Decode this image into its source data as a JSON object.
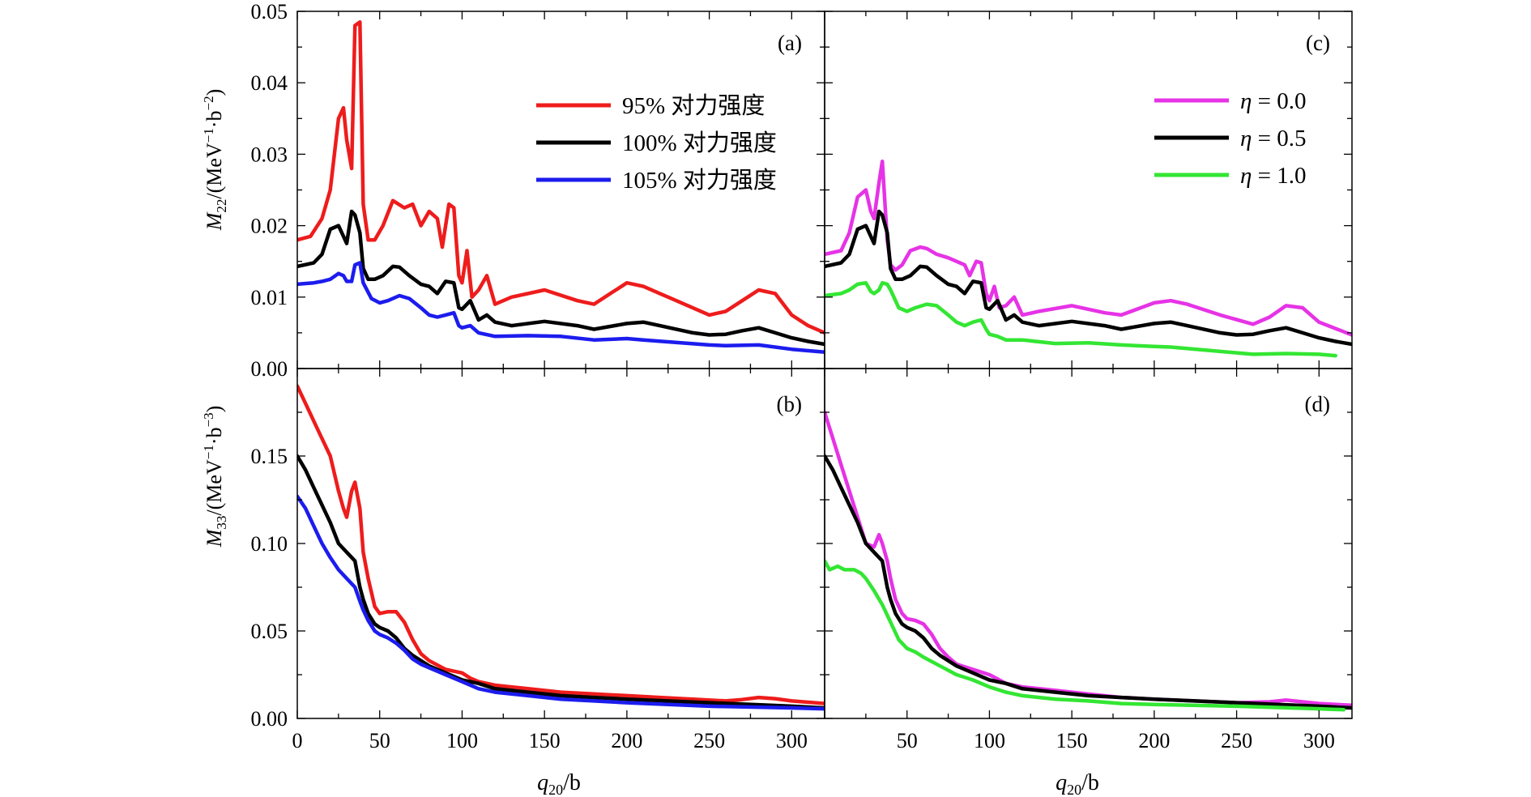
{
  "axis_labels": {
    "ylabel_top_main": "M",
    "ylabel_top_sub": "22",
    "ylabel_top_unit": "/(MeV",
    "ylabel_top_sup1": "−1",
    "ylabel_top_mid": "·b",
    "ylabel_top_sup2": "−2",
    "ylabel_top_close": ")",
    "ylabel_bottom_main": "M",
    "ylabel_bottom_sub": "33",
    "ylabel_bottom_unit": "/(MeV",
    "ylabel_bottom_sup1": "−1",
    "ylabel_bottom_mid": "·b",
    "ylabel_bottom_sup2": "−3",
    "ylabel_bottom_close": ")",
    "xlabel_main": "q",
    "xlabel_sub": "20",
    "xlabel_unit": "/b"
  },
  "colors": {
    "red": "#ee1c1c",
    "black": "#000000",
    "blue": "#1c1cee",
    "magenta": "#e633e6",
    "green": "#33e633"
  },
  "chart_data": [
    {
      "panel": "(a)",
      "type": "line",
      "xlim": [
        0,
        320
      ],
      "ylim": [
        0,
        0.05
      ],
      "xticks": [
        0,
        50,
        100,
        150,
        200,
        250,
        300
      ],
      "yticks": [
        "0.00",
        "0.01",
        "0.02",
        "0.03",
        "0.04",
        "0.05"
      ],
      "legend_position": "top-right",
      "series": [
        {
          "name": "95% 对力强度",
          "color": "red",
          "x": [
            0,
            8,
            15,
            20,
            25,
            28,
            30,
            33,
            35,
            38,
            40,
            43,
            47,
            52,
            58,
            65,
            70,
            75,
            80,
            85,
            88,
            92,
            95,
            98,
            100,
            103,
            106,
            110,
            115,
            120,
            130,
            150,
            170,
            180,
            190,
            200,
            210,
            220,
            230,
            250,
            260,
            270,
            280,
            290,
            300,
            310,
            320
          ],
          "y": [
            0.018,
            0.0185,
            0.021,
            0.025,
            0.035,
            0.0365,
            0.032,
            0.028,
            0.048,
            0.0485,
            0.023,
            0.018,
            0.018,
            0.02,
            0.0235,
            0.0225,
            0.023,
            0.02,
            0.022,
            0.021,
            0.017,
            0.023,
            0.0225,
            0.013,
            0.012,
            0.0165,
            0.01,
            0.011,
            0.013,
            0.009,
            0.01,
            0.011,
            0.0095,
            0.009,
            0.0105,
            0.012,
            0.0115,
            0.0105,
            0.0095,
            0.0075,
            0.008,
            0.0095,
            0.011,
            0.0105,
            0.0075,
            0.006,
            0.005
          ]
        },
        {
          "name": "100% 对力强度",
          "color": "black",
          "x": [
            0,
            10,
            15,
            20,
            25,
            28,
            30,
            33,
            35,
            38,
            40,
            43,
            47,
            52,
            58,
            62,
            68,
            75,
            80,
            85,
            90,
            95,
            98,
            100,
            105,
            110,
            115,
            120,
            130,
            150,
            170,
            180,
            200,
            210,
            220,
            240,
            250,
            260,
            270,
            280,
            290,
            300,
            310,
            320
          ],
          "y": [
            0.0143,
            0.0148,
            0.016,
            0.0195,
            0.02,
            0.0185,
            0.0175,
            0.022,
            0.0215,
            0.019,
            0.014,
            0.0125,
            0.0125,
            0.013,
            0.0143,
            0.0142,
            0.013,
            0.0118,
            0.0115,
            0.0105,
            0.0122,
            0.012,
            0.0085,
            0.0083,
            0.0095,
            0.0068,
            0.0075,
            0.0065,
            0.006,
            0.0066,
            0.006,
            0.0055,
            0.0063,
            0.0065,
            0.006,
            0.005,
            0.0047,
            0.0048,
            0.0053,
            0.0057,
            0.005,
            0.0043,
            0.0038,
            0.0034
          ]
        },
        {
          "name": "105% 对力强度",
          "color": "blue",
          "x": [
            0,
            10,
            15,
            20,
            25,
            28,
            30,
            33,
            35,
            38,
            40,
            45,
            50,
            55,
            62,
            68,
            75,
            80,
            85,
            90,
            95,
            98,
            100,
            105,
            110,
            120,
            140,
            160,
            180,
            200,
            210,
            250,
            260,
            280,
            300,
            320
          ],
          "y": [
            0.0118,
            0.012,
            0.0122,
            0.0125,
            0.0133,
            0.013,
            0.0122,
            0.0122,
            0.0145,
            0.0148,
            0.012,
            0.0098,
            0.0092,
            0.0095,
            0.0102,
            0.0098,
            0.0085,
            0.0075,
            0.0072,
            0.0075,
            0.0078,
            0.006,
            0.0057,
            0.006,
            0.005,
            0.0045,
            0.0046,
            0.0045,
            0.004,
            0.0042,
            0.004,
            0.0033,
            0.0032,
            0.0033,
            0.0027,
            0.0023
          ]
        }
      ]
    },
    {
      "panel": "(b)",
      "type": "line",
      "xlim": [
        0,
        320
      ],
      "ylim": [
        0,
        0.2
      ],
      "xticks": [
        0,
        50,
        100,
        150,
        200,
        250,
        300
      ],
      "yticks": [
        "0.00",
        "0.05",
        "0.10",
        "0.15"
      ],
      "series": [
        {
          "name": "95% 对力强度",
          "color": "red",
          "x": [
            0,
            5,
            10,
            15,
            20,
            25,
            28,
            30,
            33,
            35,
            38,
            40,
            43,
            47,
            50,
            55,
            60,
            65,
            70,
            75,
            80,
            90,
            95,
            100,
            105,
            110,
            120,
            140,
            160,
            180,
            200,
            220,
            240,
            260,
            270,
            280,
            290,
            300,
            320
          ],
          "y": [
            0.19,
            0.18,
            0.17,
            0.16,
            0.15,
            0.13,
            0.12,
            0.115,
            0.13,
            0.135,
            0.12,
            0.095,
            0.08,
            0.064,
            0.06,
            0.061,
            0.061,
            0.055,
            0.045,
            0.037,
            0.033,
            0.028,
            0.027,
            0.026,
            0.023,
            0.021,
            0.019,
            0.017,
            0.015,
            0.014,
            0.013,
            0.012,
            0.011,
            0.01,
            0.0108,
            0.012,
            0.0113,
            0.01,
            0.0085
          ]
        },
        {
          "name": "100% 对力强度",
          "color": "black",
          "x": [
            0,
            5,
            10,
            15,
            20,
            25,
            30,
            35,
            38,
            40,
            43,
            47,
            50,
            55,
            60,
            65,
            70,
            75,
            80,
            90,
            100,
            110,
            120,
            140,
            160,
            180,
            200,
            250,
            300,
            320
          ],
          "y": [
            0.15,
            0.142,
            0.132,
            0.122,
            0.112,
            0.1,
            0.095,
            0.09,
            0.075,
            0.068,
            0.06,
            0.054,
            0.052,
            0.05,
            0.046,
            0.04,
            0.036,
            0.033,
            0.03,
            0.026,
            0.022,
            0.02,
            0.017,
            0.015,
            0.013,
            0.012,
            0.011,
            0.009,
            0.007,
            0.006
          ]
        },
        {
          "name": "105% 对力强度",
          "color": "blue",
          "x": [
            0,
            5,
            10,
            15,
            20,
            25,
            30,
            35,
            38,
            40,
            43,
            47,
            50,
            55,
            60,
            65,
            70,
            75,
            80,
            90,
            100,
            110,
            120,
            140,
            160,
            180,
            200,
            250,
            300,
            320
          ],
          "y": [
            0.127,
            0.12,
            0.11,
            0.1,
            0.092,
            0.085,
            0.08,
            0.075,
            0.067,
            0.062,
            0.056,
            0.05,
            0.048,
            0.046,
            0.043,
            0.039,
            0.034,
            0.031,
            0.029,
            0.025,
            0.021,
            0.017,
            0.015,
            0.013,
            0.011,
            0.01,
            0.009,
            0.007,
            0.006,
            0.0055
          ]
        }
      ]
    },
    {
      "panel": "(c)",
      "type": "line",
      "xlim": [
        0,
        320
      ],
      "ylim": [
        0,
        0.05
      ],
      "xticks": [
        50,
        100,
        150,
        200,
        250,
        300
      ],
      "legend_position": "top-right",
      "series": [
        {
          "name": "η = 0.0",
          "color": "magenta",
          "x": [
            0,
            10,
            15,
            20,
            25,
            28,
            30,
            33,
            35,
            38,
            40,
            43,
            47,
            52,
            58,
            62,
            68,
            75,
            80,
            85,
            88,
            92,
            95,
            98,
            100,
            103,
            106,
            110,
            115,
            120,
            130,
            150,
            170,
            180,
            200,
            210,
            220,
            240,
            260,
            270,
            280,
            290,
            300,
            320
          ],
          "y": [
            0.016,
            0.0165,
            0.019,
            0.024,
            0.025,
            0.022,
            0.021,
            0.026,
            0.029,
            0.018,
            0.0145,
            0.0138,
            0.0145,
            0.0165,
            0.017,
            0.0168,
            0.016,
            0.0155,
            0.015,
            0.0145,
            0.013,
            0.015,
            0.0148,
            0.0105,
            0.0095,
            0.0115,
            0.0085,
            0.0088,
            0.01,
            0.0075,
            0.008,
            0.0088,
            0.0078,
            0.0075,
            0.0092,
            0.0095,
            0.009,
            0.0075,
            0.0062,
            0.0072,
            0.0088,
            0.0085,
            0.0065,
            0.0047
          ]
        },
        {
          "name": "η = 0.5",
          "color": "black",
          "x": [
            0,
            10,
            15,
            20,
            25,
            28,
            30,
            33,
            35,
            38,
            40,
            43,
            47,
            52,
            58,
            62,
            68,
            75,
            80,
            85,
            90,
            95,
            98,
            100,
            105,
            110,
            115,
            120,
            130,
            150,
            170,
            180,
            200,
            210,
            220,
            240,
            250,
            260,
            270,
            280,
            290,
            300,
            310,
            320
          ],
          "y": [
            0.0143,
            0.0148,
            0.016,
            0.0195,
            0.02,
            0.0185,
            0.0175,
            0.022,
            0.0215,
            0.019,
            0.014,
            0.0125,
            0.0125,
            0.013,
            0.0143,
            0.0142,
            0.013,
            0.0118,
            0.0115,
            0.0105,
            0.0122,
            0.012,
            0.0085,
            0.0083,
            0.0095,
            0.0068,
            0.0075,
            0.0065,
            0.006,
            0.0066,
            0.006,
            0.0055,
            0.0063,
            0.0065,
            0.006,
            0.005,
            0.0047,
            0.0048,
            0.0053,
            0.0057,
            0.005,
            0.0043,
            0.0038,
            0.0034
          ]
        },
        {
          "name": "η = 1.0",
          "color": "green",
          "x": [
            0,
            10,
            15,
            20,
            25,
            28,
            30,
            33,
            35,
            38,
            40,
            45,
            50,
            55,
            62,
            68,
            75,
            80,
            85,
            90,
            95,
            98,
            100,
            105,
            110,
            120,
            140,
            160,
            180,
            200,
            210,
            250,
            260,
            280,
            300,
            310
          ],
          "y": [
            0.0102,
            0.0105,
            0.011,
            0.0118,
            0.012,
            0.0108,
            0.0105,
            0.011,
            0.012,
            0.0118,
            0.011,
            0.0085,
            0.008,
            0.0085,
            0.009,
            0.0088,
            0.0075,
            0.0065,
            0.006,
            0.0065,
            0.0068,
            0.0055,
            0.0048,
            0.0045,
            0.004,
            0.004,
            0.0035,
            0.0036,
            0.0033,
            0.0031,
            0.003,
            0.0022,
            0.002,
            0.0021,
            0.002,
            0.0018
          ]
        }
      ]
    },
    {
      "panel": "(d)",
      "type": "line",
      "xlim": [
        0,
        320
      ],
      "ylim": [
        0,
        0.2
      ],
      "xticks": [
        50,
        100,
        150,
        200,
        250,
        300
      ],
      "series": [
        {
          "name": "η = 0.0",
          "color": "magenta",
          "x": [
            0,
            5,
            10,
            15,
            20,
            25,
            30,
            33,
            35,
            38,
            40,
            43,
            47,
            50,
            55,
            60,
            65,
            70,
            75,
            80,
            90,
            100,
            110,
            120,
            140,
            160,
            180,
            200,
            250,
            270,
            280,
            290,
            300,
            320
          ],
          "y": [
            0.175,
            0.16,
            0.145,
            0.13,
            0.115,
            0.1,
            0.098,
            0.105,
            0.1,
            0.09,
            0.08,
            0.068,
            0.06,
            0.057,
            0.056,
            0.054,
            0.048,
            0.04,
            0.035,
            0.031,
            0.028,
            0.025,
            0.02,
            0.018,
            0.016,
            0.014,
            0.012,
            0.011,
            0.009,
            0.0095,
            0.0105,
            0.0095,
            0.0085,
            0.0075
          ]
        },
        {
          "name": "η = 0.5",
          "color": "black",
          "x": [
            0,
            5,
            10,
            15,
            20,
            25,
            30,
            35,
            38,
            40,
            43,
            47,
            50,
            55,
            60,
            65,
            70,
            75,
            80,
            90,
            100,
            110,
            120,
            140,
            160,
            180,
            200,
            250,
            300,
            320
          ],
          "y": [
            0.15,
            0.142,
            0.132,
            0.122,
            0.112,
            0.1,
            0.095,
            0.09,
            0.075,
            0.068,
            0.06,
            0.054,
            0.052,
            0.05,
            0.046,
            0.04,
            0.036,
            0.033,
            0.03,
            0.026,
            0.022,
            0.02,
            0.017,
            0.015,
            0.013,
            0.012,
            0.011,
            0.009,
            0.007,
            0.006
          ]
        },
        {
          "name": "η = 1.0",
          "color": "green",
          "x": [
            0,
            3,
            8,
            12,
            18,
            22,
            25,
            30,
            35,
            40,
            45,
            50,
            55,
            60,
            70,
            80,
            90,
            100,
            110,
            120,
            140,
            160,
            180,
            200,
            250,
            300,
            315
          ],
          "y": [
            0.09,
            0.085,
            0.087,
            0.085,
            0.085,
            0.083,
            0.08,
            0.073,
            0.065,
            0.055,
            0.045,
            0.04,
            0.038,
            0.035,
            0.03,
            0.025,
            0.022,
            0.018,
            0.015,
            0.013,
            0.011,
            0.01,
            0.0085,
            0.008,
            0.007,
            0.0055,
            0.005
          ]
        }
      ]
    }
  ]
}
